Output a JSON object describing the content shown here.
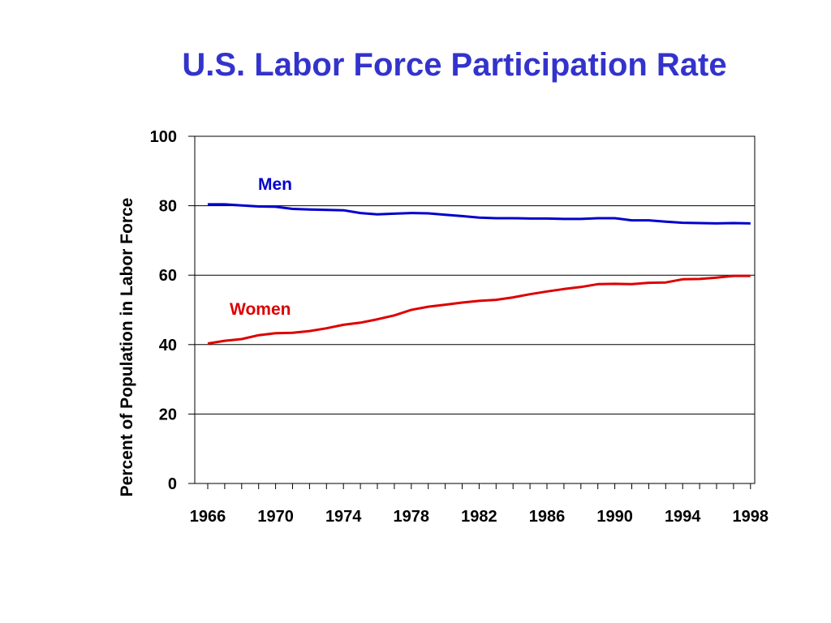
{
  "title": "U.S. Labor Force Participation Rate",
  "chart_data": {
    "type": "line",
    "title": "U.S. Labor Force Participation Rate",
    "xlabel": "",
    "ylabel": "Percent of Population in Labor Force",
    "xlim": [
      1966,
      1998
    ],
    "ylim": [
      0,
      100
    ],
    "x_ticks": [
      "1966",
      "1970",
      "1974",
      "1978",
      "1982",
      "1986",
      "1990",
      "1994",
      "1998"
    ],
    "y_ticks": [
      "0",
      "20",
      "40",
      "60",
      "80",
      "100"
    ],
    "grid": "horizontal",
    "x": [
      1966,
      1967,
      1968,
      1969,
      1970,
      1971,
      1972,
      1973,
      1974,
      1975,
      1976,
      1977,
      1978,
      1979,
      1980,
      1981,
      1982,
      1983,
      1984,
      1985,
      1986,
      1987,
      1988,
      1989,
      1990,
      1991,
      1992,
      1993,
      1994,
      1995,
      1996,
      1997,
      1998
    ],
    "series": [
      {
        "name": "Men",
        "color": "#0000cc",
        "values": [
          80.4,
          80.4,
          80.1,
          79.8,
          79.7,
          79.1,
          78.9,
          78.8,
          78.7,
          77.9,
          77.5,
          77.7,
          77.9,
          77.8,
          77.4,
          77.0,
          76.6,
          76.4,
          76.4,
          76.3,
          76.3,
          76.2,
          76.2,
          76.4,
          76.4,
          75.8,
          75.8,
          75.4,
          75.1,
          75.0,
          74.9,
          75.0,
          74.9
        ]
      },
      {
        "name": "Women",
        "color": "#dd0000",
        "values": [
          40.3,
          41.1,
          41.6,
          42.7,
          43.3,
          43.4,
          43.9,
          44.7,
          45.7,
          46.3,
          47.3,
          48.4,
          50.0,
          50.9,
          51.5,
          52.1,
          52.6,
          52.9,
          53.6,
          54.5,
          55.3,
          56.0,
          56.6,
          57.4,
          57.5,
          57.4,
          57.8,
          57.9,
          58.8,
          58.9,
          59.3,
          59.8,
          59.8
        ]
      }
    ]
  }
}
